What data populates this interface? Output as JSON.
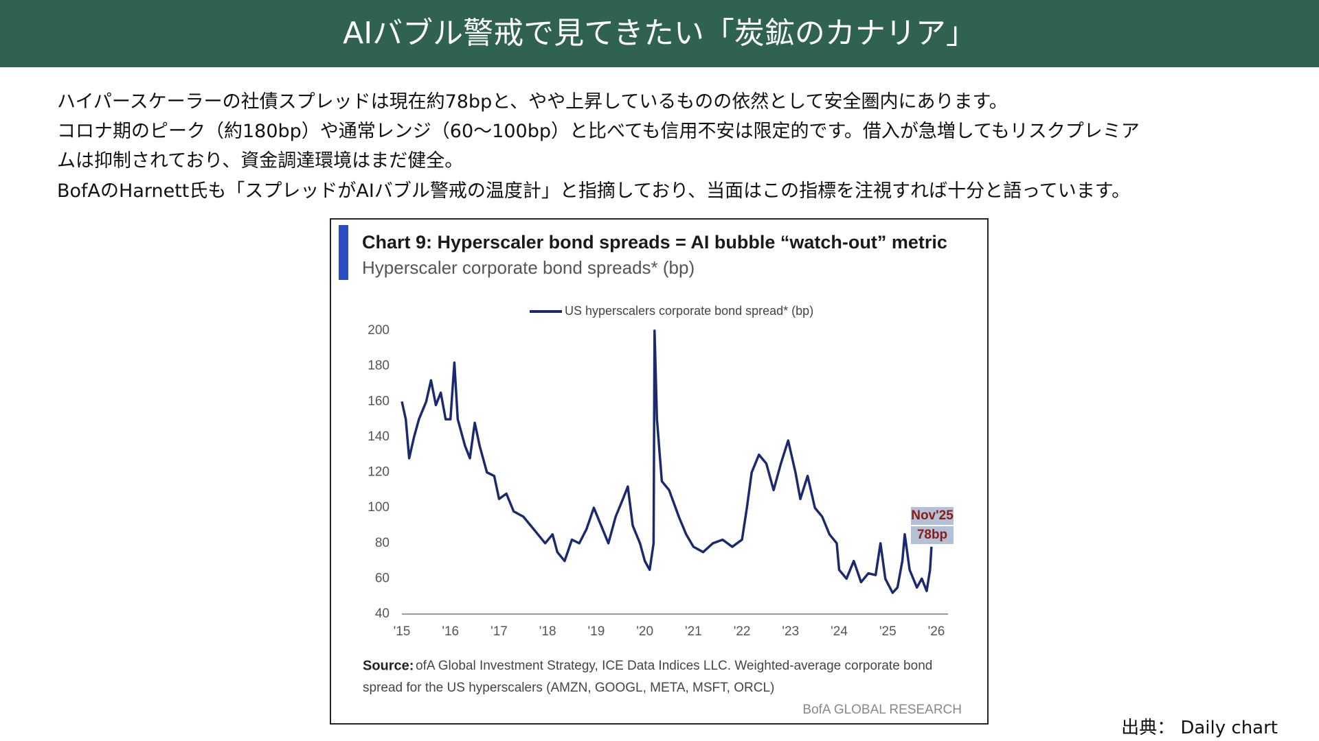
{
  "header": {
    "title": "AIバブル警戒で見てきたい「炭鉱のカナリア」"
  },
  "body": {
    "lines": [
      "ハイパースケーラーの社債スプレッドは現在約78bpと、やや上昇しているものの依然として安全圏内にあります。",
      "コロナ期のピーク（約180bp）や通常レンジ（60〜100bp）と比べても信用不安は限定的です。借入が急増してもリスクプレミア",
      "ムは抑制されており、資金調達環境はまだ健全。",
      "BofAのHarnett氏も「スプレッドがAIバブル警戒の温度計」と指摘しており、当面はこの指標を注視すれば十分と語っています。"
    ]
  },
  "chart_data": {
    "type": "line",
    "title": "Chart 9: Hyperscaler bond spreads = AI bubble “watch-out” metric",
    "subtitle": "Hyperscaler corporate bond spreads* (bp)",
    "x": [
      2015.0,
      2015.08,
      2015.15,
      2015.25,
      2015.35,
      2015.5,
      2015.6,
      2015.7,
      2015.8,
      2015.9,
      2016.0,
      2016.08,
      2016.15,
      2016.3,
      2016.4,
      2016.5,
      2016.6,
      2016.75,
      2016.9,
      2017.0,
      2017.15,
      2017.3,
      2017.5,
      2017.65,
      2017.8,
      2017.95,
      2018.1,
      2018.2,
      2018.35,
      2018.5,
      2018.65,
      2018.8,
      2018.95,
      2019.1,
      2019.25,
      2019.4,
      2019.55,
      2019.65,
      2019.75,
      2019.9,
      2020.0,
      2020.1,
      2020.18,
      2020.2,
      2020.25,
      2020.35,
      2020.5,
      2020.7,
      2020.85,
      2021.0,
      2021.2,
      2021.4,
      2021.6,
      2021.8,
      2022.0,
      2022.1,
      2022.2,
      2022.35,
      2022.5,
      2022.65,
      2022.8,
      2022.95,
      2023.1,
      2023.2,
      2023.35,
      2023.5,
      2023.65,
      2023.8,
      2023.95,
      2024.0,
      2024.15,
      2024.3,
      2024.45,
      2024.6,
      2024.75,
      2024.85,
      2024.95,
      2025.1,
      2025.2,
      2025.3,
      2025.35,
      2025.45,
      2025.6,
      2025.7,
      2025.8,
      2025.87,
      2025.9
    ],
    "series": [
      {
        "name": "US hyperscalers corporate bond spread* (bp)",
        "color": "#1b2a6e",
        "values": [
          160,
          150,
          128,
          140,
          150,
          160,
          172,
          158,
          165,
          150,
          150,
          182,
          150,
          135,
          128,
          148,
          135,
          120,
          118,
          105,
          108,
          98,
          95,
          90,
          85,
          80,
          85,
          75,
          70,
          82,
          80,
          88,
          100,
          90,
          80,
          95,
          105,
          112,
          90,
          80,
          70,
          65,
          80,
          200,
          150,
          115,
          110,
          95,
          85,
          78,
          75,
          80,
          82,
          78,
          82,
          100,
          120,
          130,
          125,
          110,
          125,
          138,
          120,
          105,
          118,
          100,
          95,
          85,
          80,
          65,
          60,
          70,
          58,
          63,
          62,
          80,
          60,
          52,
          55,
          70,
          85,
          65,
          55,
          60,
          53,
          65,
          78
        ]
      }
    ],
    "xlim": [
      2015,
      2026
    ],
    "xticks": [
      {
        "value": 2015,
        "label": "'15"
      },
      {
        "value": 2016,
        "label": "'16"
      },
      {
        "value": 2017,
        "label": "'17"
      },
      {
        "value": 2018,
        "label": "'18"
      },
      {
        "value": 2019,
        "label": "'19"
      },
      {
        "value": 2020,
        "label": "'20"
      },
      {
        "value": 2021,
        "label": "'21"
      },
      {
        "value": 2022,
        "label": "'22"
      },
      {
        "value": 2023,
        "label": "'23"
      },
      {
        "value": 2024,
        "label": "'24"
      },
      {
        "value": 2025,
        "label": "'25"
      },
      {
        "value": 2026,
        "label": "'26"
      }
    ],
    "ylim": [
      40,
      200
    ],
    "yticks": [
      40,
      60,
      80,
      100,
      120,
      140,
      160,
      180,
      200
    ],
    "legend": "top",
    "annotation": [
      "Nov'25",
      "78bp"
    ],
    "source_label": "Source:",
    "source_lines": [
      "ofA Global Investment Strategy, ICE Data Indices LLC. Weighted-average corporate bond",
      "spread for the US hyperscalers (AMZN, GOOGL, META, MSFT, ORCL)"
    ],
    "branding": "BofA GLOBAL RESEARCH"
  },
  "footer": {
    "credit": "出典： Daily chart"
  }
}
